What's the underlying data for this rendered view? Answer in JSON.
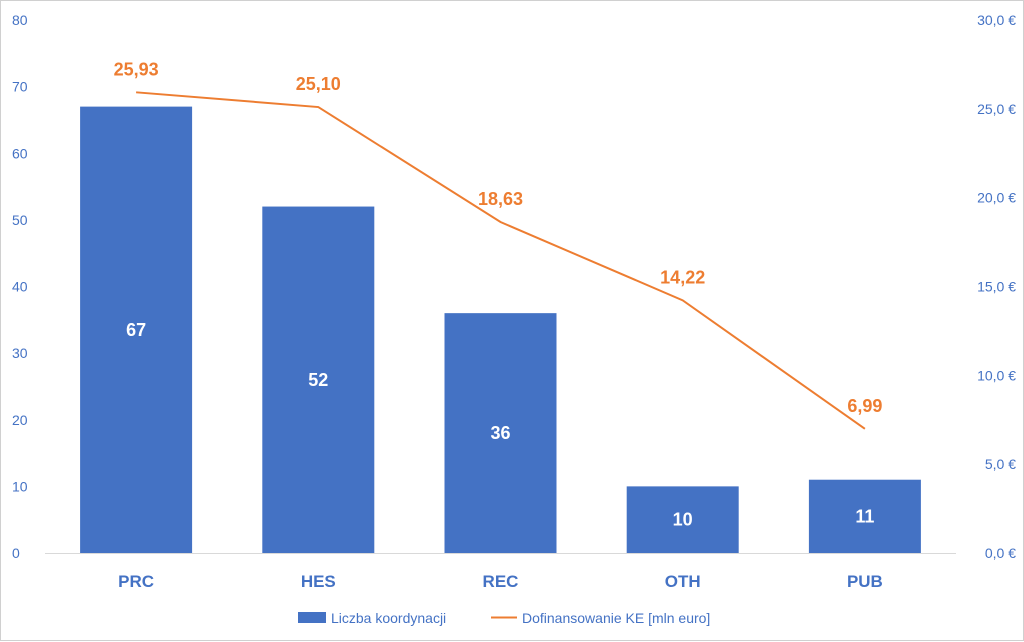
{
  "chart_data": {
    "type": "bar",
    "categories": [
      "PRC",
      "HES",
      "REC",
      "OTH",
      "PUB"
    ],
    "series": [
      {
        "name": "Liczba koordynacji",
        "type": "bar",
        "axis": "left",
        "values": [
          67,
          52,
          36,
          10,
          11
        ],
        "value_labels": [
          "67",
          "52",
          "36",
          "10",
          "11"
        ],
        "color": "#4472c4"
      },
      {
        "name": "Dofinansowanie KE [mln euro]",
        "type": "line",
        "axis": "right",
        "values": [
          25.93,
          25.1,
          18.63,
          14.22,
          6.99
        ],
        "value_labels": [
          "25,93",
          "25,10",
          "18,63",
          "14,22",
          "6,99"
        ],
        "color": "#ed7d31"
      }
    ],
    "y_left": {
      "ylim": [
        0,
        80
      ],
      "ticks": [
        0,
        10,
        20,
        30,
        40,
        50,
        60,
        70,
        80
      ],
      "tick_labels": [
        "0",
        "10",
        "20",
        "30",
        "40",
        "50",
        "60",
        "70",
        "80"
      ]
    },
    "y_right": {
      "ylim": [
        0,
        30
      ],
      "ticks": [
        0,
        5,
        10,
        15,
        20,
        25,
        30
      ],
      "tick_labels": [
        "0,0 €",
        "5,0 €",
        "10,0 €",
        "15,0 €",
        "20,0 €",
        "25,0 €",
        "30,0 €"
      ]
    },
    "grid": false,
    "legend": "bottom",
    "axis_color": "#4472c4"
  }
}
